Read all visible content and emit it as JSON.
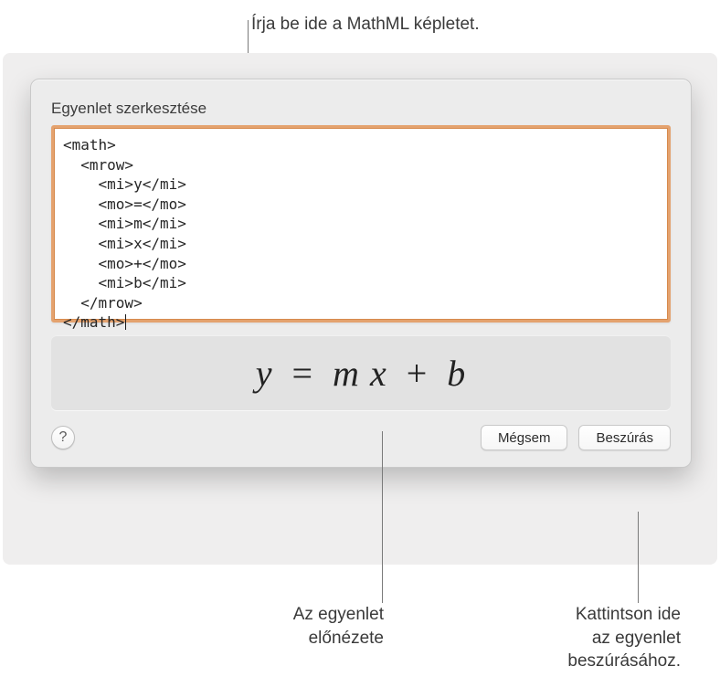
{
  "callouts": {
    "top": "Írja be ide a MathML képletet.",
    "preview": "Az egyenlet\nelőnézete",
    "insert": "Kattintson ide\naz egyenlet\nbeszúrásához."
  },
  "dialog": {
    "title": "Egyenlet szerkesztése",
    "editor_text": "<math>\n  <mrow>\n    <mi>y</mi>\n    <mo>=</mo>\n    <mi>m</mi>\n    <mi>x</mi>\n    <mo>+</mo>\n    <mi>b</mi>\n  </mrow>\n</math>",
    "preview_equation": {
      "y": "y",
      "eq": "=",
      "m": "m",
      "x": "x",
      "plus": "+",
      "b": "b"
    },
    "help_label": "?",
    "cancel_label": "Mégsem",
    "insert_label": "Beszúrás"
  },
  "colors": {
    "dialog_bg": "#ececec",
    "editor_border": "#e4a26e",
    "preview_bg": "#e2e2e2",
    "leader": "#7a7a7a"
  }
}
